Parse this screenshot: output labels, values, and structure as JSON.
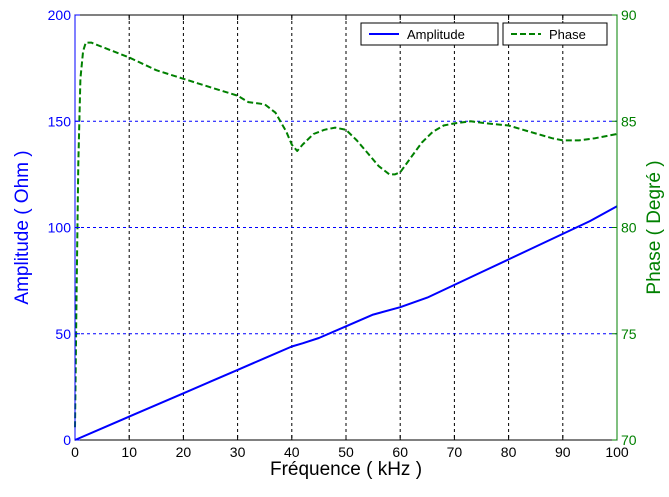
{
  "chart_data": {
    "type": "line",
    "xlabel": "Fréquence ( kHz )",
    "ylabel": "Amplitude ( Ohm )",
    "y2label": "Phase ( Degré )",
    "xlim": [
      0,
      100
    ],
    "ylim": [
      0,
      200
    ],
    "y2lim": [
      70,
      90
    ],
    "x_ticks": [
      0,
      10,
      20,
      30,
      40,
      50,
      60,
      70,
      80,
      90,
      100
    ],
    "y_ticks": [
      0,
      50,
      100,
      150,
      200
    ],
    "y2_ticks": [
      70,
      75,
      80,
      85,
      90
    ],
    "grid": true,
    "legend_position": "top-right",
    "series": [
      {
        "name": "Amplitude",
        "axis": "left",
        "color": "#0000ff",
        "style": "solid",
        "x": [
          0,
          5,
          10,
          15,
          20,
          25,
          30,
          35,
          40,
          42,
          45,
          50,
          55,
          60,
          65,
          70,
          75,
          80,
          85,
          90,
          95,
          100
        ],
        "values": [
          0,
          5.5,
          11,
          16.5,
          22,
          27.5,
          33,
          38.5,
          44,
          45.5,
          48,
          53.5,
          59,
          62.5,
          67,
          73,
          79,
          85,
          91,
          97,
          103,
          110
        ]
      },
      {
        "name": "Phase",
        "axis": "right",
        "color": "#008000",
        "style": "dashed",
        "x": [
          0,
          0.3,
          0.6,
          1,
          1.5,
          2,
          3,
          5,
          10,
          15,
          20,
          25,
          30,
          32,
          35,
          37,
          39,
          40,
          41,
          42,
          44,
          46,
          48,
          50,
          52,
          54,
          56,
          58,
          59,
          60,
          62,
          64,
          66,
          68,
          70,
          73,
          76,
          80,
          84,
          88,
          90,
          93,
          96,
          100
        ],
        "values": [
          70.6,
          77,
          83,
          87,
          88.3,
          88.7,
          88.7,
          88.5,
          88,
          87.4,
          87,
          86.6,
          86.2,
          85.9,
          85.8,
          85.4,
          84.5,
          83.9,
          83.6,
          83.9,
          84.4,
          84.6,
          84.7,
          84.6,
          84.1,
          83.5,
          82.9,
          82.5,
          82.5,
          82.6,
          83.3,
          84.0,
          84.5,
          84.8,
          84.9,
          85.0,
          84.9,
          84.8,
          84.5,
          84.2,
          84.1,
          84.1,
          84.2,
          84.4
        ]
      }
    ]
  }
}
